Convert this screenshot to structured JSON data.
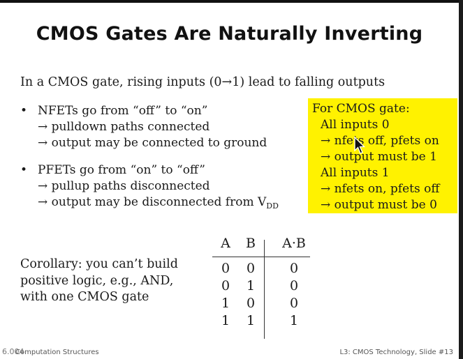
{
  "slide": {
    "title": "CMOS Gates Are Naturally Inverting",
    "intro": "In a CMOS gate, rising inputs (0→1) lead to falling outputs",
    "bullet_symbol": "•",
    "bullets": [
      {
        "head": "NFETs go from “off” to “on”",
        "subs": [
          "→ pulldown paths connected",
          "→ output may be connected to ground"
        ]
      },
      {
        "head": "PFETs go from “on” to “off”",
        "subs": [
          "→ pullup paths disconnected",
          "→ output may be disconnected from V"
        ],
        "sub2_subscript": "DD"
      }
    ],
    "box": {
      "header": "For CMOS gate:",
      "lines": [
        "All inputs 0",
        "→ nfets off, pfets on",
        "→ output must be 1",
        "All inputs 1",
        "→ nfets on, pfets off",
        "→ output must be 0"
      ],
      "color": "#fff200"
    },
    "corollary": "Corollary: you can’t build\npositive logic, e.g., AND,\nwith one CMOS gate",
    "truth_table": {
      "headers": [
        "A",
        "B",
        "A·B"
      ],
      "rows": [
        [
          "0",
          "0",
          "0"
        ],
        [
          "0",
          "1",
          "0"
        ],
        [
          "1",
          "0",
          "0"
        ],
        [
          "1",
          "1",
          "1"
        ]
      ]
    }
  },
  "footer": {
    "left": "Computation Structures",
    "right": "L3: CMOS Technology, Slide #13",
    "icon": "6.004"
  },
  "icons": {
    "cursor": "mouse-pointer-icon"
  }
}
